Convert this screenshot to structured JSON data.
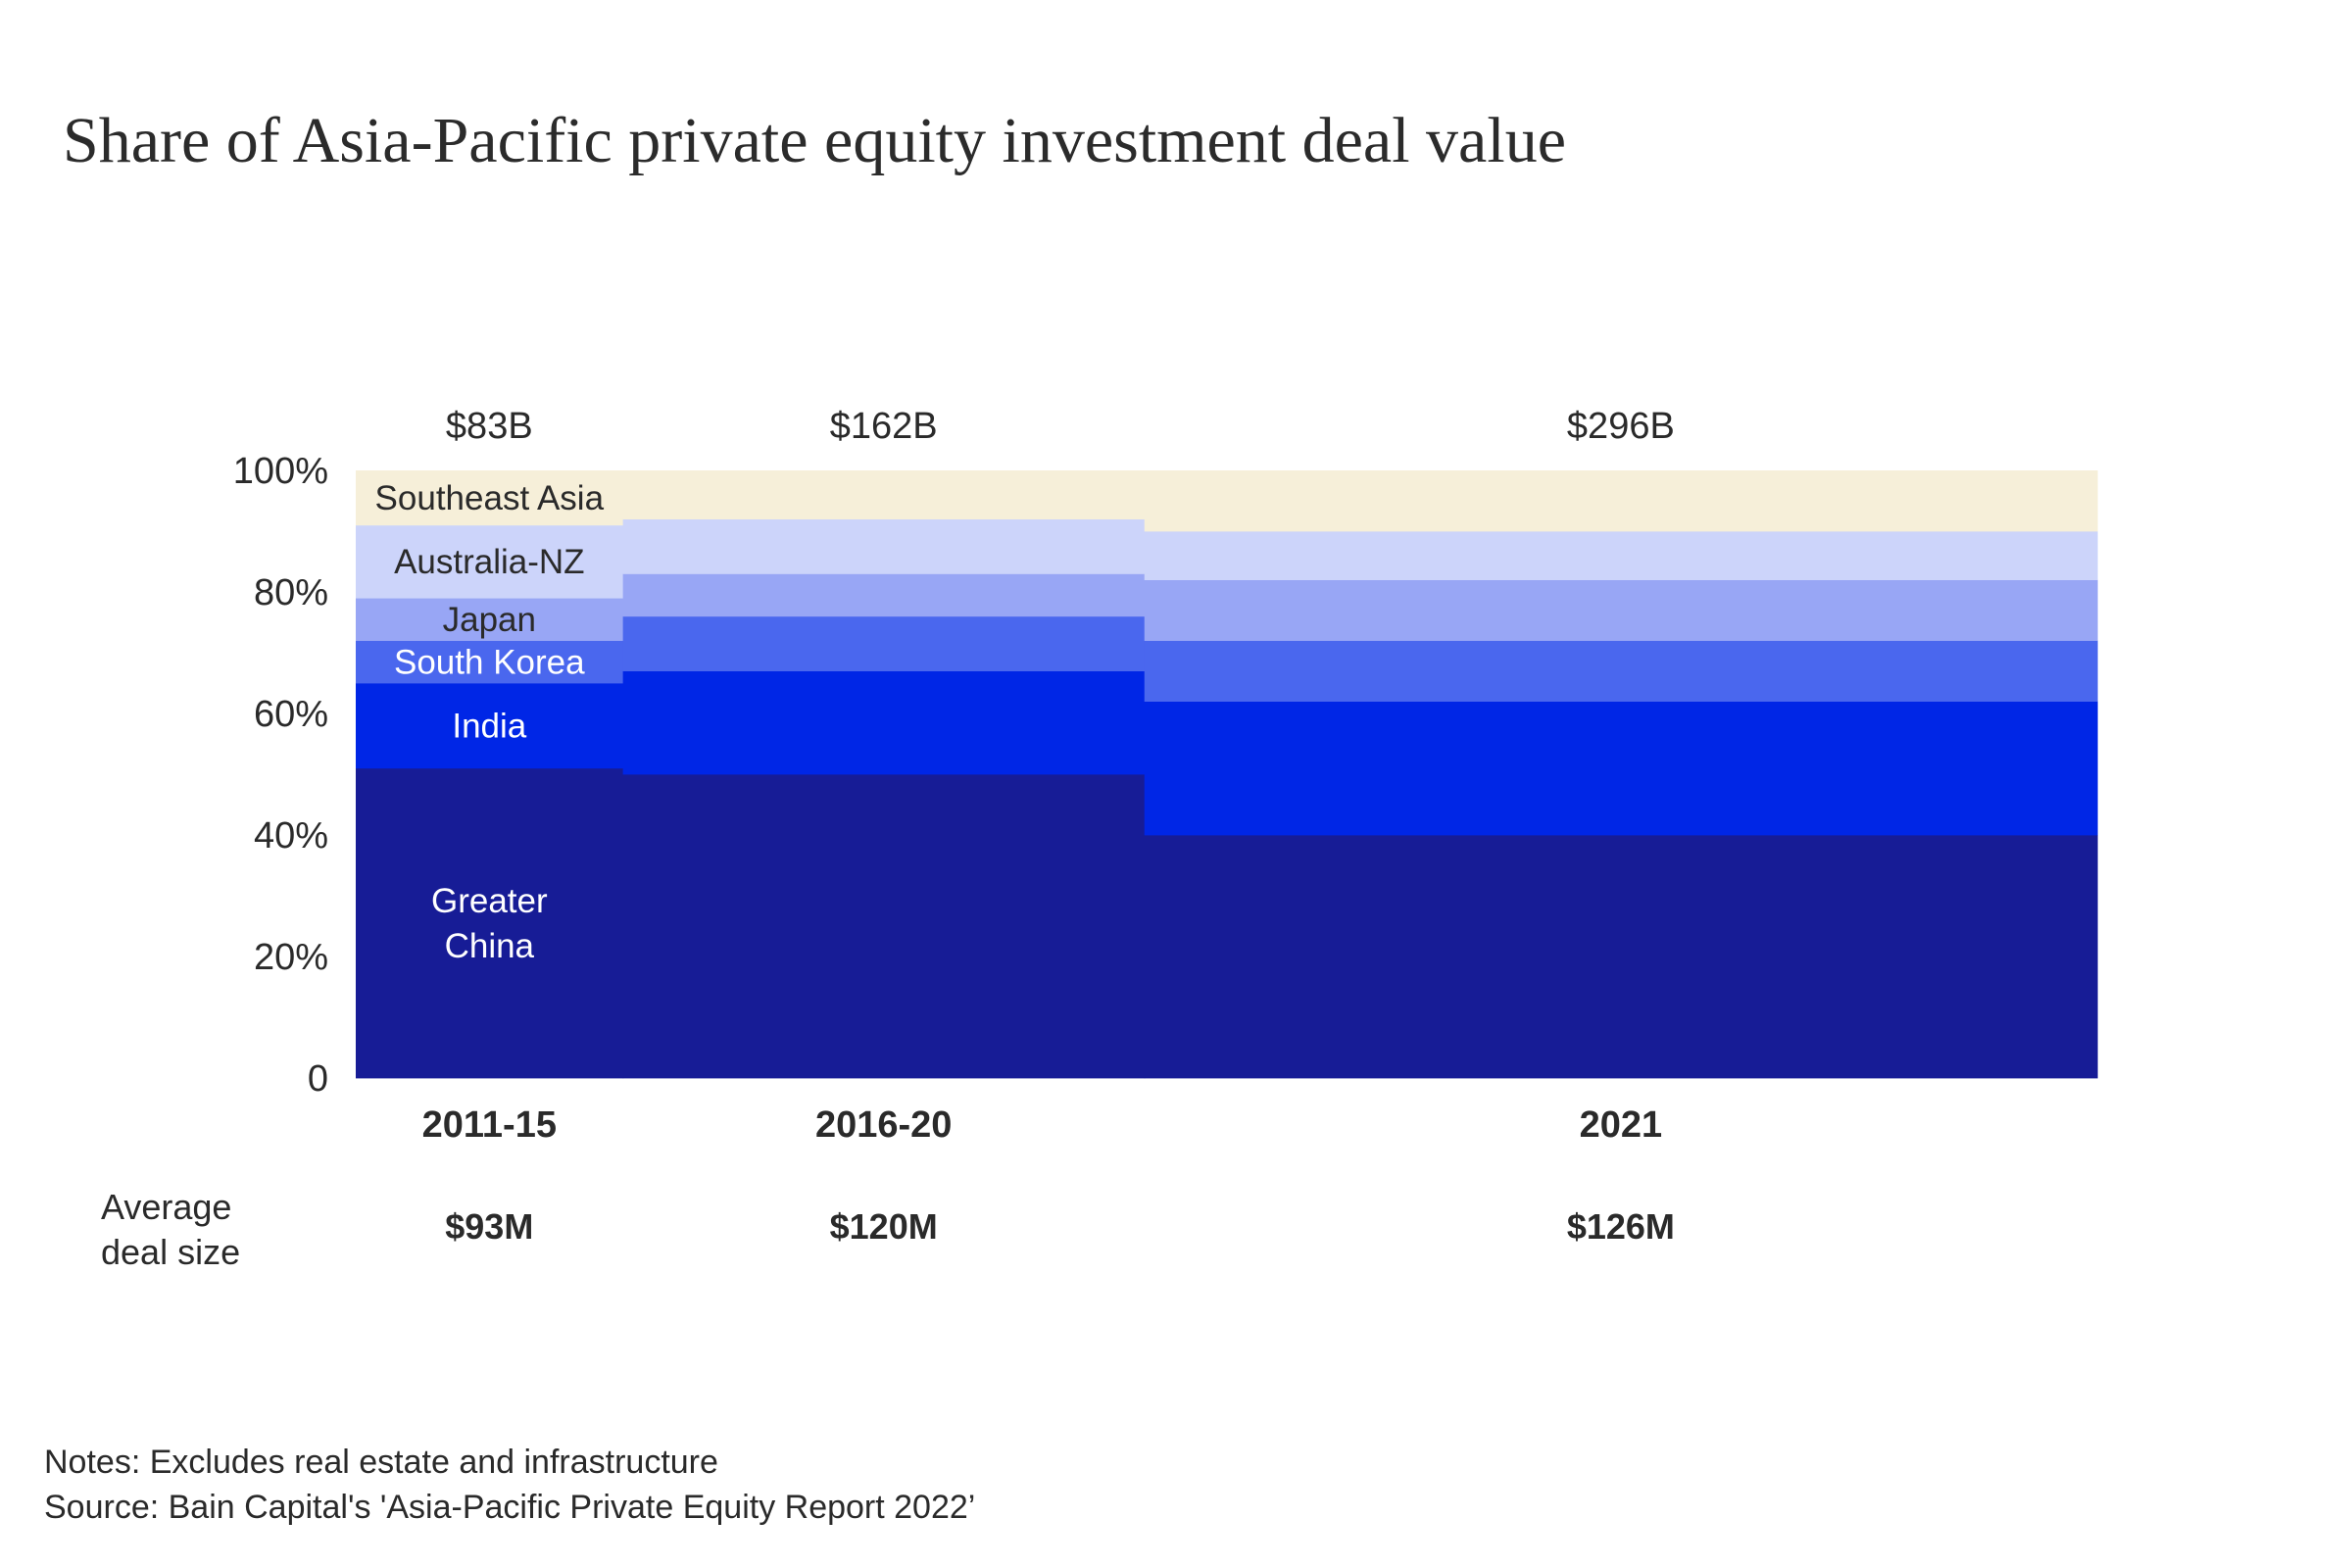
{
  "title": "Share of Asia-Pacific private equity investment deal value",
  "avg_deal_size_label": [
    "Average",
    "deal size"
  ],
  "notes": "Notes: Excludes real estate and infrastructure",
  "source": "Source: Bain Capital's 'Asia-Pacific Private Equity Report 2022’",
  "chart_data": {
    "type": "area",
    "subtype": "stacked-100-percent-marimekko",
    "title": "Share of Asia-Pacific private equity investment deal value",
    "ylim": [
      0,
      100
    ],
    "yticks": [
      {
        "value": 0,
        "label": "0"
      },
      {
        "value": 20,
        "label": "20%"
      },
      {
        "value": 40,
        "label": "40%"
      },
      {
        "value": 60,
        "label": "60%"
      },
      {
        "value": 80,
        "label": "80%"
      },
      {
        "value": 100,
        "label": "100%"
      }
    ],
    "categories": [
      "2011-15",
      "2016-20",
      "2021"
    ],
    "category_totals": [
      "$83B",
      "$162B",
      "$296B"
    ],
    "category_total_values": [
      83,
      162,
      296
    ],
    "average_deal_size": [
      "$93M",
      "$120M",
      "$126M"
    ],
    "colors": {
      "Greater China": "#171c96",
      "India": "#0026e6",
      "South Korea": "#4a67ee",
      "Japan": "#98a6f5",
      "Australia-NZ": "#ccd4fa",
      "Southeast Asia": "#f6efd9"
    },
    "segment_label_colors": {
      "Greater China": "#ffffff",
      "India": "#ffffff",
      "South Korea": "#ffffff",
      "Japan": "#2a2a2a",
      "Australia-NZ": "#2a2a2a",
      "Southeast Asia": "#2a2a2a"
    },
    "series": [
      {
        "name": "Greater China",
        "label_lines": [
          "Greater",
          "China"
        ],
        "values": [
          51,
          50,
          40
        ]
      },
      {
        "name": "India",
        "label_lines": [
          "India"
        ],
        "values": [
          14,
          17,
          22
        ]
      },
      {
        "name": "South Korea",
        "label_lines": [
          "South Korea"
        ],
        "values": [
          7,
          9,
          10
        ]
      },
      {
        "name": "Japan",
        "label_lines": [
          "Japan"
        ],
        "values": [
          7,
          7,
          10
        ]
      },
      {
        "name": "Australia-NZ",
        "label_lines": [
          "Australia-NZ"
        ],
        "values": [
          12,
          9,
          8
        ]
      },
      {
        "name": "Southeast Asia",
        "label_lines": [
          "Southeast Asia"
        ],
        "values": [
          9,
          8,
          10
        ]
      }
    ],
    "grid": false,
    "legend": "inline labels on first column"
  }
}
